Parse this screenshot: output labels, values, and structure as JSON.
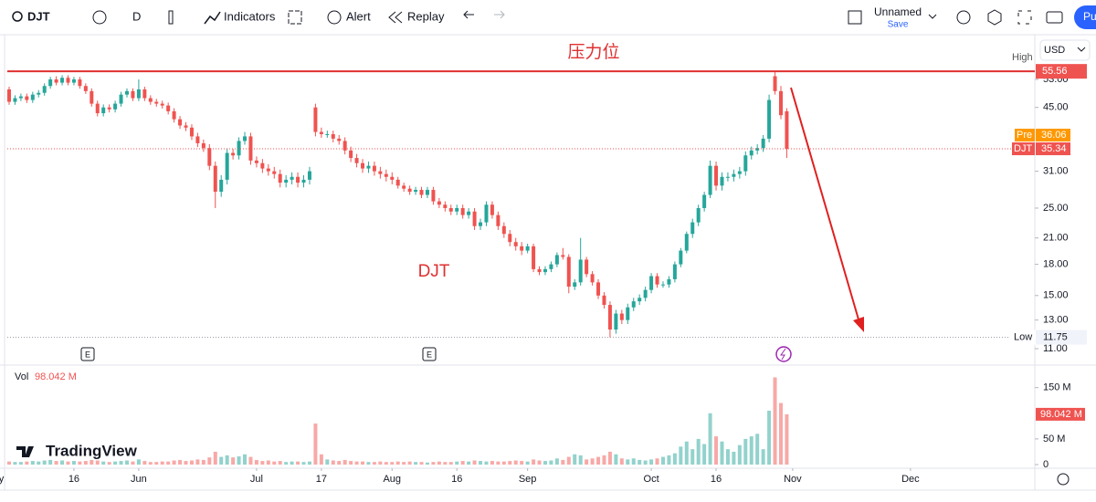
{
  "toolbar": {
    "symbol": "DJT",
    "interval": "D",
    "indicators": "Indicators",
    "alert": "Alert",
    "replay": "Replay",
    "layout": "Unnamed",
    "save": "Save",
    "publish": "Pu"
  },
  "brand": "TradingView",
  "chart_data": {
    "type": "candlestick",
    "currency": "USD",
    "log_scale": true,
    "annotations": [
      "压力位",
      "DJT"
    ],
    "up_color": "#26a69a",
    "down_color": "#ef5350",
    "xlim": [
      -1.55,
      174.1
    ],
    "xticks": [
      {
        "value": -2.5,
        "label": "May"
      },
      {
        "value": 11,
        "label": "16"
      },
      {
        "value": 22,
        "label": "Jun"
      },
      {
        "value": 42,
        "label": "Jul"
      },
      {
        "value": 53,
        "label": "17"
      },
      {
        "value": 65,
        "label": "Aug"
      },
      {
        "value": 76,
        "label": "16"
      },
      {
        "value": 88,
        "label": "Sep"
      },
      {
        "value": 109,
        "label": "Oct"
      },
      {
        "value": 120,
        "label": "16"
      },
      {
        "value": 133,
        "label": "Nov"
      },
      {
        "value": 153,
        "label": "Dec"
      }
    ],
    "ylim": [
      10.1,
      66.3
    ],
    "yticks": [
      {
        "value": 53,
        "label": "53.00"
      },
      {
        "value": 45,
        "label": "45.00"
      },
      {
        "value": 31,
        "label": "31.00"
      },
      {
        "value": 25,
        "label": "25.00"
      },
      {
        "value": 21,
        "label": "21.00"
      },
      {
        "value": 18,
        "label": "18.00"
      },
      {
        "value": 15,
        "label": "15.00"
      },
      {
        "value": 13,
        "label": "13.00"
      },
      {
        "value": 11,
        "label": "11.00"
      }
    ],
    "markers": {
      "high": {
        "label": "High",
        "value": 55.56
      },
      "low": {
        "label": "Low",
        "value": 11.75
      },
      "pre": {
        "label": "Pre",
        "value": 36.06
      },
      "last": {
        "label": "DJT",
        "value": 35.34
      }
    },
    "open": [
      50,
      46.5,
      47.5,
      48,
      47,
      48.5,
      49,
      51,
      53,
      52,
      53.5,
      52,
      53,
      51,
      49.5,
      46,
      43.5,
      45,
      44.5,
      46,
      48.5,
      49.5,
      47.5,
      50,
      47.5,
      46.5,
      46,
      45.5,
      44,
      42,
      40.5,
      40,
      38,
      36.5,
      35.5,
      32,
      27.5,
      29.5,
      34.5,
      34,
      37,
      38,
      33,
      32.5,
      31.5,
      31,
      30.5,
      29,
      29.5,
      30,
      29,
      29.5,
      45,
      39,
      38.5,
      38.5,
      37.5,
      37,
      35,
      33.5,
      32.5,
      31.5,
      32,
      31,
      30.5,
      30,
      29.5,
      28.5,
      28,
      27.5,
      27.8,
      27,
      27.8,
      26,
      25.5,
      25,
      24.5,
      25,
      24,
      24.5,
      22.5,
      23,
      25.5,
      24,
      22.5,
      21.5,
      20.5,
      20,
      19.5,
      20,
      17.5,
      17.2,
      17.5,
      18,
      19,
      18.8,
      15.8,
      16.2,
      18.5,
      17,
      16.2,
      15,
      14.2,
      12.3,
      13.5,
      13,
      14,
      14.5,
      14.8,
      15.5,
      16.8,
      16,
      16,
      16.5,
      18,
      19.5,
      21.5,
      23,
      25,
      27,
      32,
      28.5,
      30,
      30,
      30.5,
      31,
      34,
      35,
      35.5,
      37.5,
      54,
      49.5,
      44
    ],
    "high": [
      50.8,
      48.3,
      48.8,
      48.8,
      49.3,
      49.8,
      51.8,
      53.8,
      54,
      54.3,
      54.3,
      53.8,
      53.8,
      51.8,
      50.3,
      46.8,
      45.8,
      45.8,
      46.8,
      49.3,
      50.3,
      50.3,
      53,
      50.8,
      48.3,
      47.3,
      46.8,
      46.3,
      44.8,
      42.8,
      41.3,
      40.8,
      38.8,
      37.3,
      36.3,
      32.8,
      30.3,
      35.3,
      35.3,
      37.8,
      39,
      38.8,
      33.8,
      33.3,
      32.3,
      31.8,
      31.3,
      30.3,
      30.8,
      30.8,
      30.3,
      31.8,
      46,
      40,
      39.3,
      39.3,
      38.3,
      37.8,
      35.8,
      34.3,
      33.3,
      32.8,
      32.8,
      31.8,
      31.3,
      30.8,
      30,
      29,
      28.5,
      28.3,
      28.3,
      28.3,
      28.3,
      26.5,
      26,
      25.5,
      25.5,
      25.5,
      25,
      25,
      23.5,
      26,
      26,
      24.5,
      23,
      22,
      21,
      20.5,
      20.3,
      20.3,
      17.8,
      17.8,
      18.3,
      19.3,
      19.8,
      19.1,
      16.5,
      21,
      18.8,
      17.3,
      16.5,
      15.3,
      14.5,
      13.8,
      13.8,
      14.3,
      14.8,
      15.1,
      15.8,
      17.1,
      17.1,
      16.3,
      16.8,
      18.3,
      19.8,
      21.8,
      23.5,
      25.5,
      27.5,
      33,
      32.8,
      30.8,
      30.8,
      31.3,
      31.8,
      34.8,
      35.8,
      36.3,
      38.3,
      48.5,
      55.56,
      51,
      44.8
    ],
    "low": [
      45.7,
      45.7,
      46.7,
      46.2,
      46.2,
      47.7,
      48.2,
      50.2,
      51.2,
      51.2,
      51.2,
      51.2,
      50.2,
      48.7,
      45.2,
      42.7,
      42.7,
      43.7,
      43.7,
      45.2,
      47.7,
      46.7,
      46.7,
      46.7,
      45.7,
      45.2,
      44.7,
      43.2,
      41.2,
      39.7,
      39.2,
      37.2,
      35.7,
      34.7,
      31.2,
      25,
      26.7,
      28.7,
      33.2,
      33.2,
      36.2,
      32.2,
      31.7,
      30.7,
      30.2,
      29.7,
      28.2,
      28.2,
      28.7,
      28.2,
      28.2,
      28.7,
      38,
      37.7,
      37.7,
      36.7,
      36.2,
      34.2,
      32.7,
      31.7,
      30.7,
      30.7,
      30.2,
      29.7,
      29.2,
      28.7,
      28,
      27.5,
      27,
      27,
      26.5,
      26.5,
      25.5,
      25,
      24.5,
      24,
      24,
      23.5,
      23.5,
      22,
      22,
      22.5,
      23.5,
      22,
      21,
      20,
      19.5,
      19,
      19.2,
      17.2,
      16.9,
      16.9,
      17.2,
      17.7,
      18.5,
      15.2,
      15.5,
      15.9,
      16.7,
      15.9,
      14.7,
      13.9,
      11.75,
      12,
      12.7,
      12.7,
      13.7,
      14.2,
      14.5,
      15.2,
      15.7,
      15.7,
      15.7,
      16.2,
      17.7,
      19.2,
      21,
      22.5,
      24.5,
      26.5,
      27.7,
      27.7,
      29.2,
      29.2,
      29.7,
      30.2,
      33.2,
      34.2,
      34.7,
      36.7,
      48.5,
      42,
      33.5
    ],
    "close": [
      46.5,
      47.5,
      48,
      47,
      48.5,
      49,
      51,
      53,
      52,
      53.5,
      52,
      53,
      51,
      49.5,
      46,
      43.5,
      45,
      44.5,
      46,
      48.5,
      49.5,
      47.5,
      50,
      47.5,
      46.5,
      46,
      45.5,
      44,
      42,
      40.5,
      40,
      38,
      36.5,
      35.5,
      32,
      27.5,
      29.5,
      34.5,
      34,
      37,
      38,
      33,
      32.5,
      31.5,
      31,
      30.5,
      29,
      29.5,
      30,
      29,
      29.5,
      31,
      39,
      38.5,
      38.5,
      37.5,
      37,
      35,
      33.5,
      32.5,
      31.5,
      32,
      31,
      30.5,
      30,
      29.5,
      28.5,
      28,
      27.5,
      27.8,
      27,
      27.8,
      26,
      25.5,
      25,
      24.5,
      25,
      24,
      24.5,
      22.5,
      23,
      25.5,
      24,
      22.5,
      21.5,
      20.5,
      20,
      19.5,
      20,
      17.5,
      17.2,
      17.5,
      18,
      19,
      18.8,
      15.8,
      16.2,
      18.5,
      17,
      16.2,
      15,
      14.2,
      12.3,
      13.5,
      13,
      14,
      14.5,
      14.8,
      15.5,
      16.8,
      16,
      16,
      16.5,
      18,
      19.5,
      21.5,
      23,
      25,
      27,
      32,
      28.5,
      30,
      30,
      30.5,
      31,
      34,
      35,
      35.5,
      37.5,
      47,
      49.5,
      43,
      35.34
    ],
    "volume": {
      "label": "Vol",
      "value_label": "98.042 M",
      "values": [
        6,
        5,
        5,
        6,
        7,
        6,
        8,
        9,
        7,
        8,
        6,
        7,
        6,
        7,
        9,
        8,
        6,
        5,
        6,
        7,
        8,
        6,
        10,
        7,
        5,
        5,
        6,
        6,
        8,
        9,
        7,
        8,
        10,
        9,
        14,
        25,
        15,
        18,
        14,
        16,
        20,
        15,
        9,
        7,
        8,
        6,
        7,
        5,
        6,
        6,
        5,
        6,
        80,
        20,
        10,
        8,
        7,
        9,
        7,
        6,
        6,
        5,
        5,
        6,
        5,
        5,
        6,
        5,
        6,
        5,
        5,
        4,
        5,
        6,
        5,
        5,
        6,
        7,
        6,
        8,
        7,
        6,
        7,
        6,
        6,
        7,
        8,
        7,
        6,
        10,
        8,
        7,
        8,
        12,
        9,
        15,
        20,
        18,
        10,
        12,
        15,
        18,
        25,
        20,
        12,
        10,
        12,
        9,
        8,
        10,
        12,
        15,
        18,
        22,
        35,
        45,
        30,
        50,
        40,
        100,
        55,
        45,
        30,
        25,
        38,
        50,
        55,
        60,
        30,
        105,
        170,
        120,
        98.042
      ],
      "vlim": [
        0,
        185
      ],
      "vticks": [
        0,
        {
          "value": 50,
          "label": "50 M"
        },
        {
          "value": 150,
          "label": "150 M"
        }
      ]
    }
  }
}
